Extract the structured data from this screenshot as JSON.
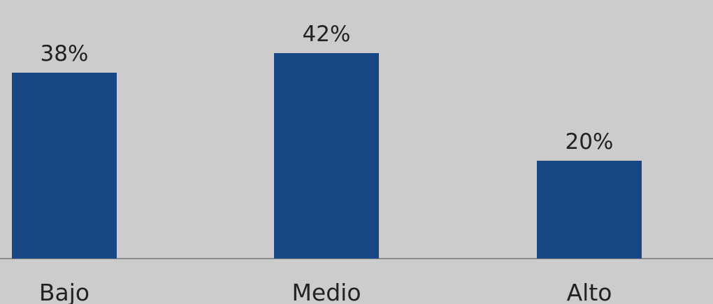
{
  "chart_data": {
    "type": "bar",
    "categories": [
      "Bajo",
      "Medio",
      "Alto"
    ],
    "values": [
      38,
      42,
      20
    ],
    "value_labels": [
      "38%",
      "42%",
      "20%"
    ],
    "unit": "%",
    "bar_color": "#174785",
    "background_color": "#cccccc",
    "axis_color": "#8c8c8c",
    "grid": false,
    "legend": "none"
  }
}
